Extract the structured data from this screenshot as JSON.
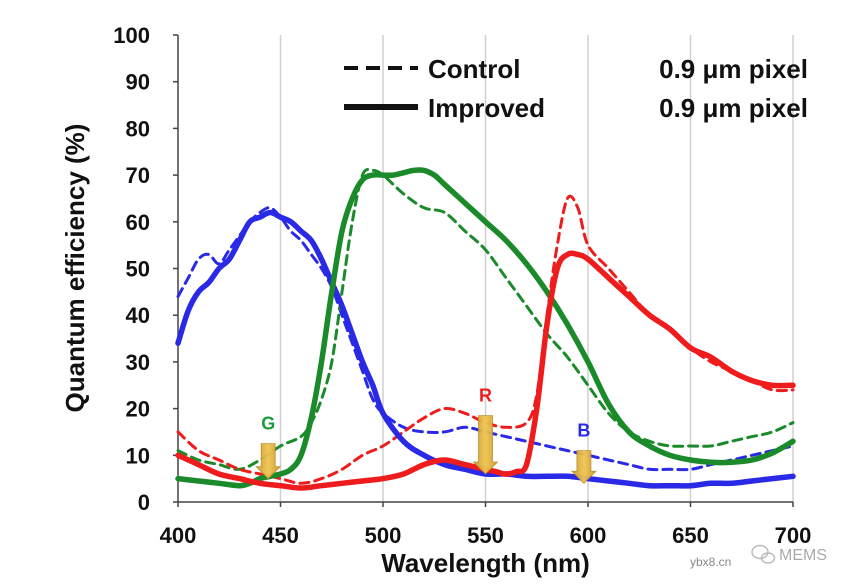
{
  "chart_data": {
    "type": "line",
    "title": "",
    "xlabel": "Wavelength (nm)",
    "ylabel": "Quantum efficiency (%)",
    "xlim": [
      400,
      700
    ],
    "ylim": [
      0,
      100
    ],
    "xticks": [
      400,
      450,
      500,
      550,
      600,
      650,
      700
    ],
    "yticks": [
      0,
      10,
      20,
      30,
      40,
      50,
      60,
      70,
      80,
      90,
      100
    ],
    "grid": "vertical",
    "legend": {
      "placement": "top-right",
      "entries": [
        {
          "label": "Control",
          "suffix": "0.9 μm pixel",
          "style": "dashed"
        },
        {
          "label": "Improved",
          "suffix": "0.9 μm pixel",
          "style": "solid"
        }
      ]
    },
    "series": [
      {
        "name": "Blue Control",
        "color": "#2a2ae6",
        "style": "dashed",
        "x": [
          400,
          405,
          410,
          415,
          420,
          425,
          430,
          435,
          440,
          445,
          450,
          455,
          460,
          465,
          470,
          475,
          480,
          485,
          490,
          495,
          500,
          510,
          520,
          530,
          540,
          550,
          560,
          570,
          580,
          590,
          600,
          610,
          620,
          630,
          640,
          650,
          660,
          670,
          680,
          690,
          700
        ],
        "y": [
          44,
          48,
          52,
          53,
          51,
          54,
          57,
          60,
          62,
          63,
          61,
          58,
          56,
          53,
          50,
          46,
          40,
          34,
          28,
          22,
          19,
          16,
          15,
          15,
          16,
          15,
          14,
          13,
          12,
          11,
          10,
          9,
          8,
          7,
          7,
          7,
          8,
          9,
          10,
          11,
          12
        ]
      },
      {
        "name": "Blue Improved",
        "color": "#2a2ae6",
        "style": "solid",
        "x": [
          400,
          405,
          410,
          415,
          420,
          425,
          430,
          435,
          440,
          445,
          450,
          455,
          460,
          465,
          470,
          475,
          480,
          485,
          490,
          495,
          500,
          510,
          520,
          530,
          540,
          550,
          560,
          570,
          580,
          590,
          600,
          610,
          620,
          630,
          640,
          650,
          660,
          670,
          680,
          690,
          700
        ],
        "y": [
          34,
          41,
          45,
          47,
          50,
          52,
          56,
          60,
          61,
          62,
          61,
          60,
          58,
          56,
          52,
          47,
          42,
          36,
          30,
          25,
          19,
          13,
          10,
          8,
          7,
          6,
          6,
          5.5,
          5.5,
          5.5,
          5,
          4.5,
          4,
          3.5,
          3.5,
          3.5,
          4,
          4,
          4.5,
          5,
          5.5
        ]
      },
      {
        "name": "Green Control",
        "color": "#1a8a2a",
        "style": "dashed",
        "x": [
          400,
          410,
          420,
          430,
          440,
          450,
          460,
          465,
          470,
          475,
          480,
          485,
          490,
          495,
          500,
          510,
          520,
          530,
          540,
          550,
          560,
          570,
          580,
          590,
          600,
          610,
          620,
          630,
          640,
          650,
          660,
          670,
          680,
          690,
          700
        ],
        "y": [
          11,
          9,
          8,
          7,
          9,
          12,
          14,
          17,
          22,
          30,
          45,
          60,
          70,
          71,
          70,
          66,
          63,
          62,
          58,
          54,
          48,
          42,
          36,
          31,
          25,
          19,
          15,
          13,
          12,
          12,
          12,
          13,
          14,
          15,
          17
        ]
      },
      {
        "name": "Green Improved",
        "color": "#1a8a2a",
        "style": "solid",
        "x": [
          400,
          410,
          420,
          430,
          435,
          440,
          445,
          450,
          455,
          460,
          465,
          470,
          475,
          480,
          485,
          490,
          495,
          500,
          505,
          510,
          515,
          520,
          525,
          530,
          540,
          550,
          560,
          570,
          580,
          590,
          600,
          610,
          620,
          630,
          640,
          650,
          660,
          670,
          680,
          690,
          700
        ],
        "y": [
          5,
          4.5,
          4,
          3.5,
          4,
          5,
          5.5,
          6,
          7,
          10,
          18,
          30,
          45,
          58,
          65,
          69,
          70,
          70,
          70,
          70.5,
          71,
          71,
          70,
          68,
          64,
          60,
          56,
          51,
          45,
          38,
          30,
          21,
          15,
          12,
          10,
          9,
          8.5,
          8.5,
          9,
          10.5,
          13
        ]
      },
      {
        "name": "Red Control",
        "color": "#ee1c1c",
        "style": "dashed",
        "x": [
          400,
          410,
          420,
          430,
          440,
          450,
          460,
          470,
          480,
          490,
          500,
          510,
          520,
          530,
          540,
          550,
          560,
          570,
          575,
          580,
          585,
          590,
          595,
          600,
          610,
          620,
          630,
          640,
          650,
          660,
          670,
          680,
          690,
          700
        ],
        "y": [
          15,
          11,
          9,
          7,
          6,
          5,
          4,
          5,
          7,
          10,
          12,
          15,
          18,
          20,
          19,
          17,
          16,
          17,
          23,
          40,
          55,
          65,
          63,
          55,
          50,
          45,
          40,
          37,
          33,
          30,
          28,
          26,
          24,
          24
        ]
      },
      {
        "name": "Red Improved",
        "color": "#ee1c1c",
        "style": "solid",
        "x": [
          400,
          410,
          420,
          430,
          440,
          450,
          460,
          470,
          480,
          490,
          500,
          510,
          520,
          530,
          540,
          550,
          555,
          560,
          565,
          570,
          575,
          580,
          585,
          590,
          595,
          600,
          610,
          620,
          630,
          640,
          650,
          660,
          670,
          680,
          690,
          700
        ],
        "y": [
          10,
          8,
          6,
          5,
          4,
          3.5,
          3,
          3.5,
          4,
          4.5,
          5,
          6,
          8,
          9,
          8,
          7,
          6.5,
          6,
          6.5,
          8,
          20,
          38,
          50,
          53,
          53,
          52,
          48,
          44,
          40,
          37,
          33,
          31,
          28,
          26,
          25,
          25
        ]
      }
    ],
    "annotations": [
      {
        "label": "G",
        "color": "#1a9a3a",
        "x": 444,
        "arrow_top": 12.5,
        "arrow_bottom": 5
      },
      {
        "label": "R",
        "color": "#ee1c1c",
        "x": 550,
        "arrow_top": 18.5,
        "arrow_bottom": 6
      },
      {
        "label": "B",
        "color": "#2a2ae6",
        "x": 598,
        "arrow_top": 11,
        "arrow_bottom": 4
      }
    ]
  },
  "watermark": {
    "site": "ybx8.cn",
    "brand": "MEMS"
  }
}
